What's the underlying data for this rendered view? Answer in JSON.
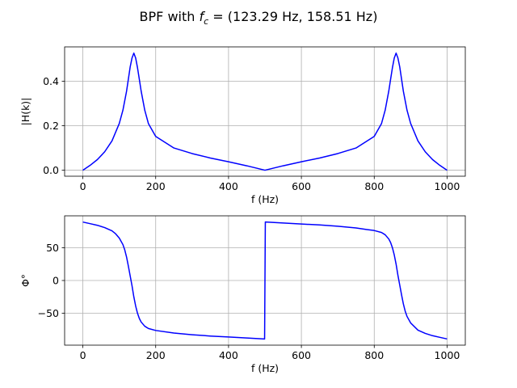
{
  "figure": {
    "title_prefix": "BPF with ",
    "title_symbol": "f",
    "title_subscript": "c",
    "title_suffix": " = (123.29 Hz, 158.51 Hz)"
  },
  "chart_data": [
    {
      "type": "line",
      "title": "",
      "xlabel": "f (Hz)",
      "ylabel": "|H(k)|",
      "xlim": [
        -50,
        1050
      ],
      "ylim": [
        -0.027,
        0.555
      ],
      "xticks": [
        0,
        200,
        400,
        600,
        800,
        1000
      ],
      "yticks": [
        0.0,
        0.2,
        0.4
      ],
      "ytick_labels": [
        "0.0",
        "0.2",
        "0.4"
      ],
      "grid": true,
      "series": [
        {
          "color": "#0000ff",
          "x": [
            0,
            20,
            40,
            60,
            80,
            100,
            110,
            120,
            125,
            130,
            135,
            140,
            145,
            150,
            155,
            160,
            170,
            180,
            200,
            250,
            300,
            350,
            400,
            450,
            500,
            550,
            600,
            650,
            700,
            750,
            800,
            820,
            830,
            840,
            845,
            850,
            855,
            860,
            865,
            870,
            875,
            880,
            890,
            900,
            920,
            940,
            960,
            980,
            1000
          ],
          "y": [
            0.0,
            0.022,
            0.048,
            0.083,
            0.132,
            0.21,
            0.27,
            0.355,
            0.41,
            0.465,
            0.505,
            0.527,
            0.505,
            0.462,
            0.41,
            0.357,
            0.27,
            0.21,
            0.152,
            0.1,
            0.075,
            0.055,
            0.038,
            0.02,
            0.0,
            0.02,
            0.038,
            0.055,
            0.075,
            0.1,
            0.152,
            0.21,
            0.27,
            0.357,
            0.41,
            0.462,
            0.505,
            0.527,
            0.505,
            0.465,
            0.41,
            0.355,
            0.27,
            0.21,
            0.132,
            0.083,
            0.048,
            0.022,
            0.0
          ]
        }
      ]
    },
    {
      "type": "line",
      "title": "",
      "xlabel": "f (Hz)",
      "ylabel": "Φ°",
      "xlim": [
        -50,
        1050
      ],
      "ylim": [
        -99,
        99
      ],
      "xticks": [
        0,
        200,
        400,
        600,
        800,
        1000
      ],
      "yticks": [
        -50,
        0,
        50
      ],
      "ytick_labels": [
        "−50",
        "0",
        "50"
      ],
      "grid": true,
      "series": [
        {
          "color": "#0000ff",
          "x": [
            0,
            20,
            40,
            60,
            80,
            90,
            100,
            110,
            115,
            120,
            125,
            130,
            135,
            140,
            145,
            150,
            155,
            160,
            170,
            180,
            200,
            250,
            300,
            350,
            400,
            450,
            499,
            501,
            550,
            600,
            650,
            700,
            750,
            780,
            800,
            820,
            830,
            840,
            845,
            850,
            855,
            860,
            865,
            870,
            875,
            880,
            885,
            890,
            900,
            920,
            940,
            960,
            980,
            1000
          ],
          "y": [
            89.5,
            87.0,
            84.5,
            81.0,
            76.0,
            71.5,
            65.0,
            55.0,
            47.0,
            36.0,
            22.0,
            7.0,
            -8.0,
            -25.0,
            -39.0,
            -50.0,
            -58.0,
            -63.5,
            -70.0,
            -73.5,
            -76.5,
            -80.5,
            -83.0,
            -85.0,
            -86.5,
            -88.0,
            -89.5,
            89.5,
            88.0,
            86.5,
            85.0,
            83.0,
            80.5,
            78.0,
            76.5,
            73.5,
            70.0,
            63.5,
            58.0,
            50.0,
            39.0,
            25.0,
            8.0,
            -7.0,
            -22.0,
            -36.0,
            -47.0,
            -55.0,
            -65.0,
            -76.0,
            -81.0,
            -84.5,
            -87.0,
            -89.5
          ]
        }
      ]
    }
  ]
}
